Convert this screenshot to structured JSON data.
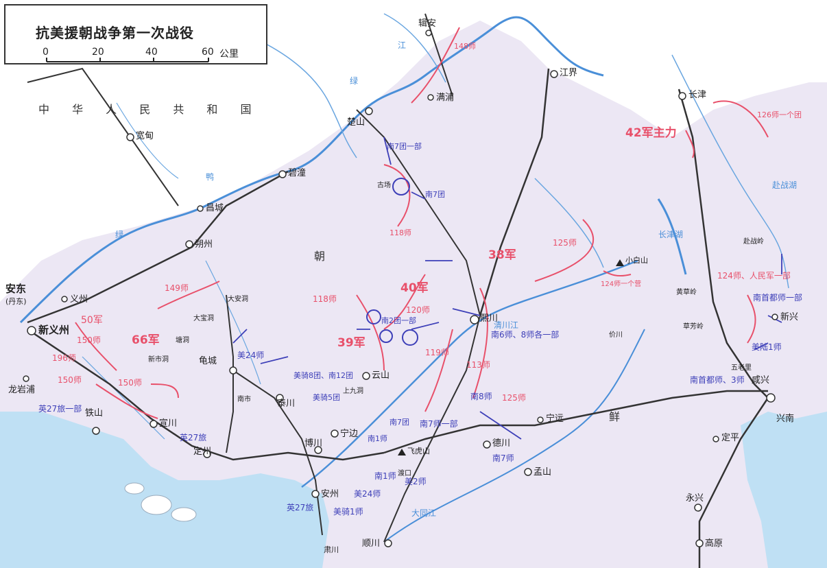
{
  "map": {
    "title": "抗美援朝战争第一次战役",
    "scale": {
      "ticks": [
        "0",
        "20",
        "40",
        "60"
      ],
      "unit": "公里"
    },
    "regions": {
      "china": "中 华 人 民 共 和 国",
      "korea_a": "朝",
      "korea_b": "鲜"
    },
    "places": {
      "jian": "辑安",
      "jiangjie": "江界",
      "changjin": "长津",
      "kuandian": "宽甸",
      "bidong": "碧潼",
      "changcheng": "昌城",
      "shuozhou": "朔州",
      "andong": "安东",
      "andong_sub": "(丹东)",
      "yizhou": "义州",
      "xinyizhou": "新义州",
      "longyanpu": "龙岩浦",
      "tieshan": "铁山",
      "xuanchuan": "宣川",
      "dingzhou": "定州",
      "guicheng": "龟城",
      "taichuan": "泰川",
      "boshan": "博川",
      "ningbian": "宁边",
      "anzhou": "安州",
      "shunchuan": "顺川",
      "suchuan": "肃川",
      "yunshan": "云山",
      "xichuan": "熙川",
      "deshan": "德川",
      "ningyuan": "宁远",
      "mengshan": "孟山",
      "dingping": "定平",
      "xianxing": "咸兴",
      "xingnan": "兴南",
      "yongxing": "永兴",
      "gaoyuan": "高原",
      "xinxing": "新兴",
      "chushan": "楚山",
      "qingyuan": "满浦",
      "xiaobaishan": "小白山",
      "feihushan": "飞虎山",
      "gudong": "古场",
      "taian": "大安洞",
      "dabaohuan": "大宝洞",
      "tangdong": "塘洞",
      "xinqiao": "新市洞",
      "binan": "南市",
      "wuhe": "五老里",
      "caofang": "草芳岭",
      "huangcao": "黄草岭",
      "fuzhanling": "赴战岭",
      "shangjiudong": "上九洞",
      "suchuan2": "价川",
      "dukou": "渡口"
    },
    "rivers": {
      "yalu1": "鸭",
      "yalu2": "绿",
      "yalu3": "江",
      "qingchuan": "清川江",
      "datong": "大同江",
      "changjin_lake": "长津湖",
      "fuzhan_lake": "赴战湖"
    },
    "volunteer_units": {
      "u148": "148师",
      "u126": "126师一个团",
      "army42": "42军主力",
      "u125": "125师",
      "army38": "38军",
      "u118a": "118师",
      "u118b": "118师",
      "army40": "40军",
      "u120": "120师",
      "army39": "39军",
      "u119": "119师",
      "u113": "113师",
      "u125b": "125师",
      "u149": "149师",
      "army50": "50军",
      "u150a": "150师",
      "u196": "196师",
      "army66": "66军",
      "u150b": "150师",
      "u150c": "150师",
      "u124": "124师一个营",
      "u124b": "124师、人民军一部"
    },
    "enemy_units": {
      "s7a": "南7团一部",
      "s7b": "南7团",
      "s2": "南2团一部",
      "s6_8": "南6师、8师各一部",
      "s8": "南8师",
      "s7c": "南7师一部",
      "s7d": "南7师",
      "s1": "南1师",
      "us2": "美2师",
      "us24a": "美24师",
      "us24b": "美24师",
      "usc1": "美骑1师",
      "us5": "美骑5团",
      "us8": "美骑8团、南12团",
      "br27a": "英27旅一部",
      "br27b": "英27旅",
      "br27c": "英27旅",
      "cap1": "南首都师一部",
      "cap3": "南首都师、3师",
      "marine1": "美陆1师",
      "ro7": "南7团",
      "s1b": "南1师"
    },
    "colors": {
      "sea": "#bfe0f4",
      "north_korea": "#ece7f4",
      "river": "#4a8fd8",
      "volunteer": "#e8506a",
      "enemy": "#3d3fb8",
      "railway": "#333333"
    }
  }
}
